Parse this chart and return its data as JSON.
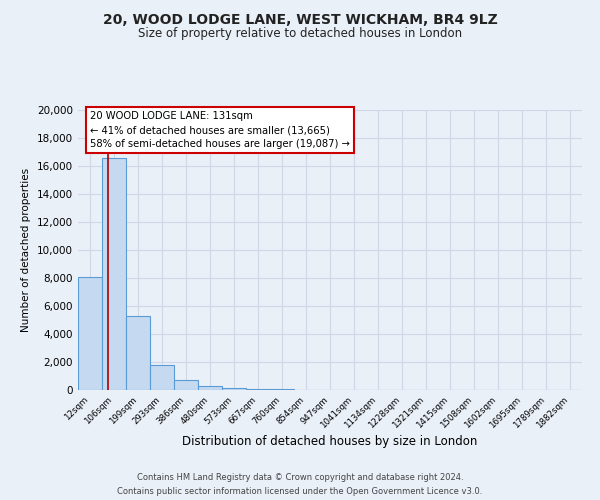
{
  "title_line1": "20, WOOD LODGE LANE, WEST WICKHAM, BR4 9LZ",
  "title_line2": "Size of property relative to detached houses in London",
  "xlabel": "Distribution of detached houses by size in London",
  "ylabel": "Number of detached properties",
  "bar_labels": [
    "12sqm",
    "106sqm",
    "199sqm",
    "293sqm",
    "386sqm",
    "480sqm",
    "573sqm",
    "667sqm",
    "760sqm",
    "854sqm",
    "947sqm",
    "1041sqm",
    "1134sqm",
    "1228sqm",
    "1321sqm",
    "1415sqm",
    "1508sqm",
    "1602sqm",
    "1695sqm",
    "1789sqm",
    "1882sqm"
  ],
  "bar_values": [
    8100,
    16600,
    5300,
    1800,
    750,
    280,
    150,
    80,
    50,
    30,
    0,
    0,
    0,
    0,
    0,
    0,
    0,
    0,
    0,
    0,
    0
  ],
  "bar_color": "#c5d9f0",
  "bar_edge_color": "#5b9bd5",
  "grid_color": "#d0d8e8",
  "background_color": "#eaf0f8",
  "annotation_line1": "20 WOOD LODGE LANE: 131sqm",
  "annotation_line2": "← 41% of detached houses are smaller (13,665)",
  "annotation_line3": "58% of semi-detached houses are larger (19,087) →",
  "red_line_x": 1.25,
  "ylim": [
    0,
    20000
  ],
  "yticks": [
    0,
    2000,
    4000,
    6000,
    8000,
    10000,
    12000,
    14000,
    16000,
    18000,
    20000
  ],
  "footer_line1": "Contains HM Land Registry data © Crown copyright and database right 2024.",
  "footer_line2": "Contains public sector information licensed under the Open Government Licence v3.0."
}
